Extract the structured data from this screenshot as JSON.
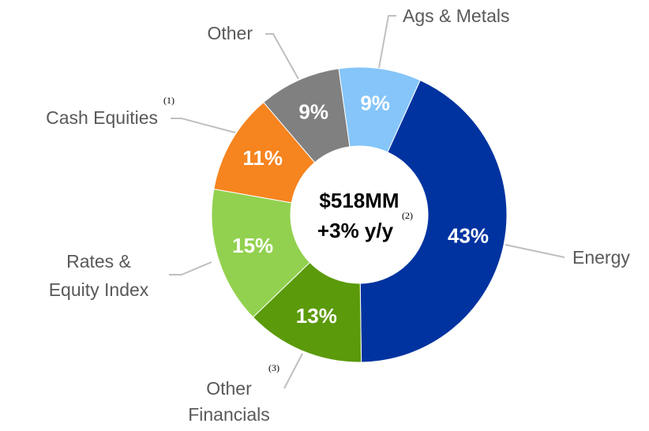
{
  "chart_data": {
    "type": "donut",
    "categories": [
      [
        "Ags & Metals"
      ],
      [
        "Energy"
      ],
      [
        "Other",
        "Financials"
      ],
      [
        "Rates &",
        "Equity Index"
      ],
      [
        "Cash Equities"
      ],
      [
        "Other"
      ]
    ],
    "values": [
      9,
      43,
      13,
      15,
      11,
      9
    ],
    "value_labels": [
      "9%",
      "43%",
      "13%",
      "15%",
      "11%",
      "9%"
    ],
    "colors": [
      "#85c5f9",
      "#0033a0",
      "#5b9a0b",
      "#92d14f",
      "#f6841f",
      "#808080"
    ],
    "center_text": [
      "$518MM",
      "+3% y/y"
    ],
    "annotations": {
      "center": "(2)",
      "cash_equities": "(1)",
      "other_financials": "(3)"
    }
  }
}
